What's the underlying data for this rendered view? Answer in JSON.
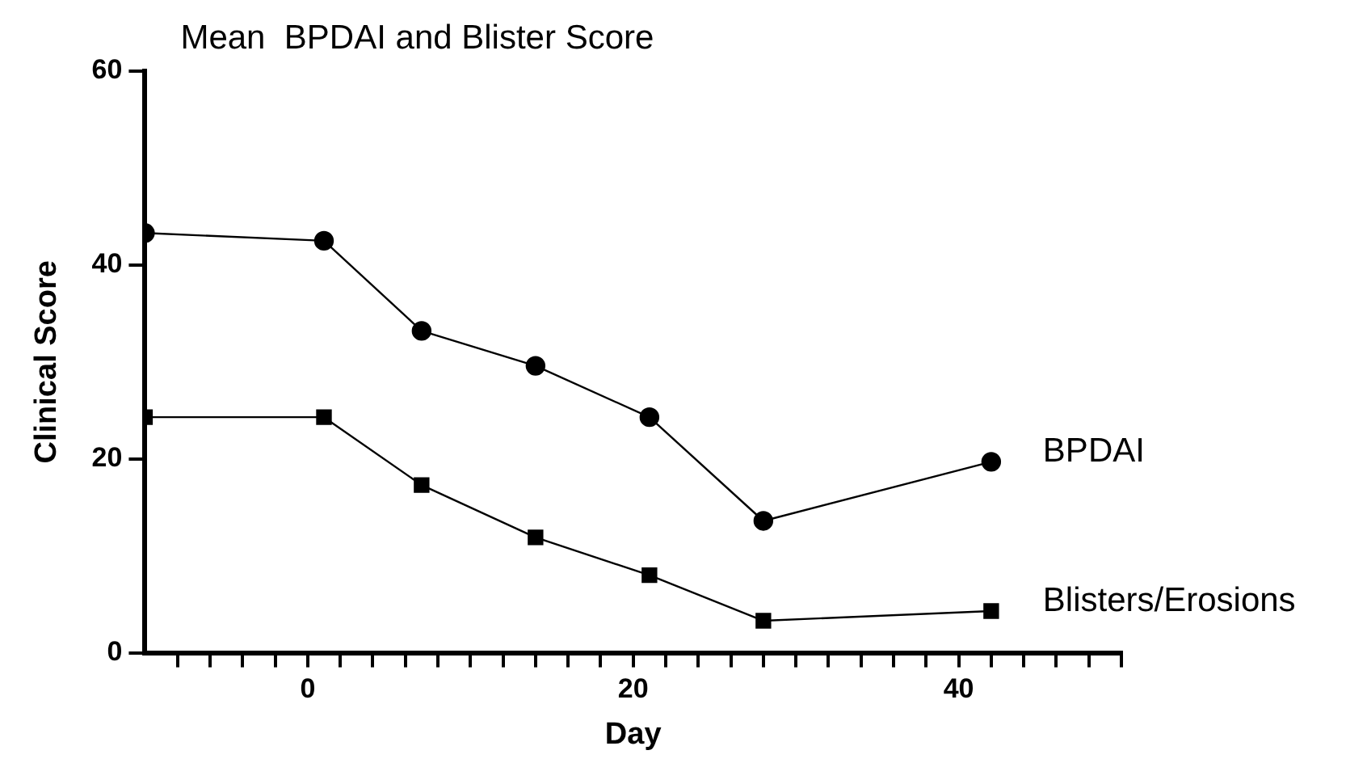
{
  "chart_data": {
    "type": "line",
    "title": "Mean  BPDAI and Blister Score",
    "xlabel": "Day",
    "ylabel": "Clinical Score",
    "x": [
      -10,
      1,
      7,
      14,
      21,
      28,
      42
    ],
    "series": [
      {
        "name": "BPDAI",
        "color": "#000000",
        "marker": "circle",
        "values": [
          43.3,
          42.5,
          33.2,
          29.6,
          24.3,
          13.6,
          19.7
        ]
      },
      {
        "name": "Blisters/Erosions",
        "color": "#000000",
        "marker": "square",
        "values": [
          24.3,
          24.3,
          17.3,
          11.9,
          8.0,
          3.3,
          4.3
        ]
      }
    ],
    "xlim": [
      -10,
      50
    ],
    "xticks": [
      {
        "value": -8,
        "label": null
      },
      {
        "value": -6,
        "label": null
      },
      {
        "value": -4,
        "label": null
      },
      {
        "value": -2,
        "label": null
      },
      0,
      {
        "value": 2,
        "label": null
      },
      {
        "value": 4,
        "label": null
      },
      {
        "value": 6,
        "label": null
      },
      {
        "value": 8,
        "label": null
      },
      {
        "value": 10,
        "label": null
      },
      {
        "value": 12,
        "label": null
      },
      {
        "value": 14,
        "label": null
      },
      {
        "value": 16,
        "label": null
      },
      {
        "value": 18,
        "label": null
      },
      20,
      {
        "value": 22,
        "label": null
      },
      {
        "value": 24,
        "label": null
      },
      {
        "value": 26,
        "label": null
      },
      {
        "value": 28,
        "label": null
      },
      {
        "value": 30,
        "label": null
      },
      {
        "value": 32,
        "label": null
      },
      {
        "value": 34,
        "label": null
      },
      {
        "value": 36,
        "label": null
      },
      {
        "value": 38,
        "label": null
      },
      40,
      {
        "value": 42,
        "label": null
      },
      {
        "value": 44,
        "label": null
      },
      {
        "value": 46,
        "label": null
      },
      {
        "value": 48,
        "label": null
      },
      {
        "value": 50,
        "label": null
      }
    ],
    "ylim": [
      0,
      60
    ],
    "yticks": [
      0,
      20,
      40,
      60
    ],
    "grid": false,
    "legend": false,
    "line_style": "solid"
  }
}
